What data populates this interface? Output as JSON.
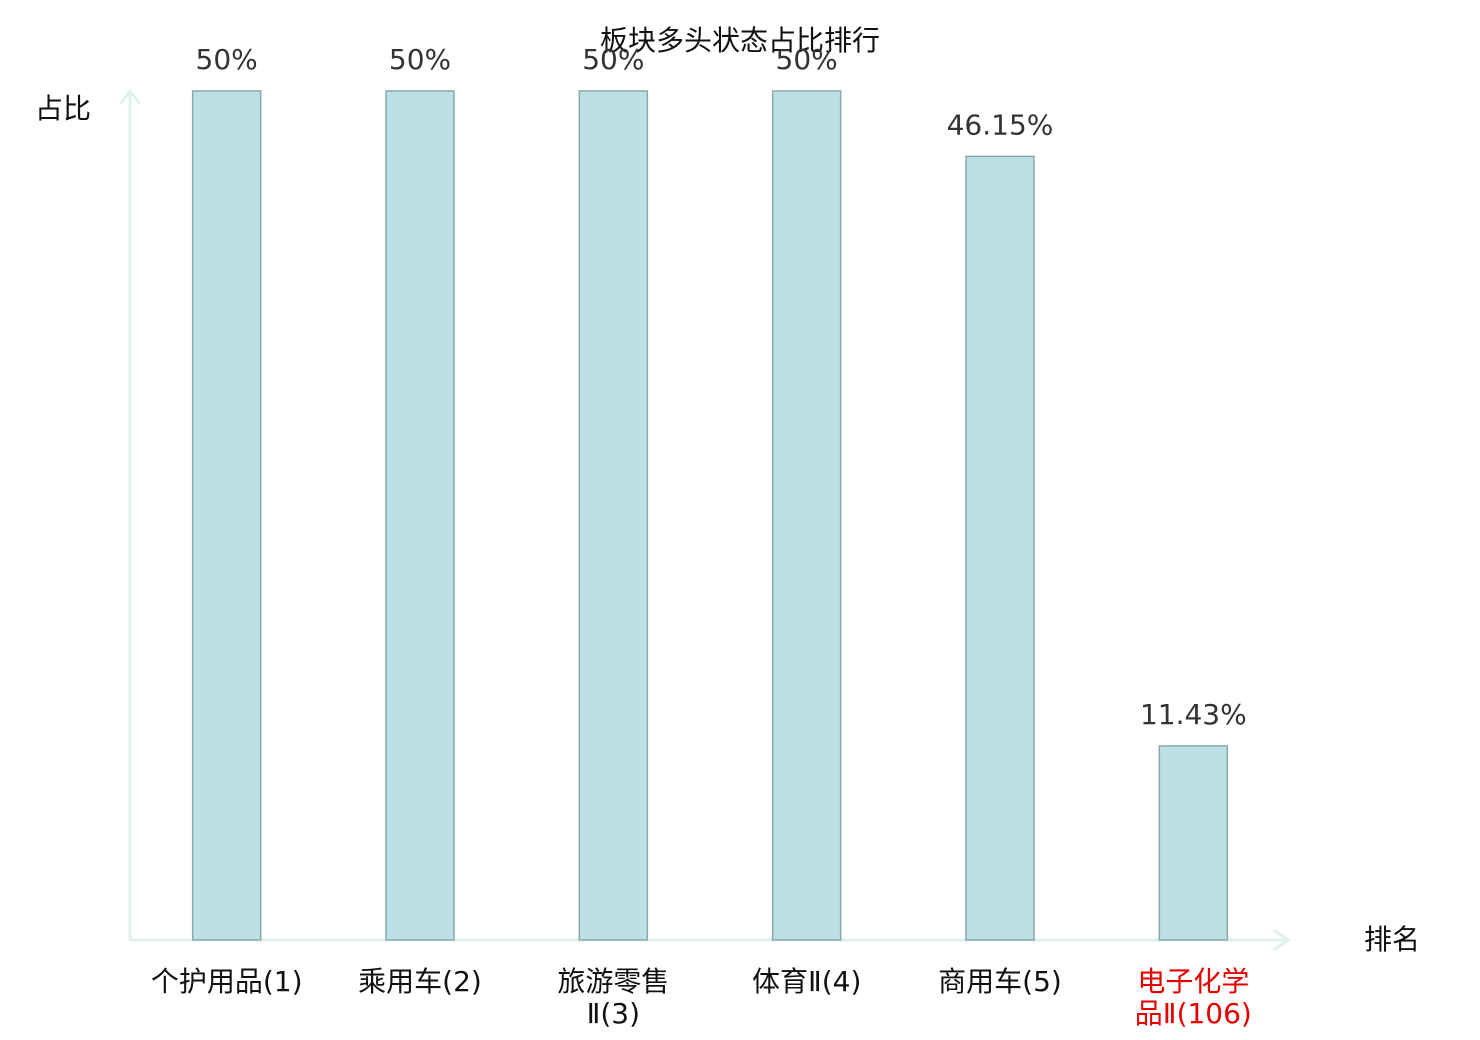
{
  "chart_data": {
    "type": "bar",
    "title": "板块多头状态占比排行",
    "y_label": "占比",
    "x_label": "排名",
    "categories": [
      "个护用品(1)",
      "乘用车(2)",
      "旅游零售Ⅱ(3)",
      "体育Ⅱ(4)",
      "商用车(5)",
      "电子化学品Ⅱ(106)"
    ],
    "values": [
      50,
      50,
      50,
      50,
      46.15,
      11.43
    ],
    "value_labels": [
      "50%",
      "50%",
      "50%",
      "50%",
      "46.15%",
      "11.43%"
    ],
    "color": "#bce0e3",
    "edge_color": "#8aa9ad",
    "category_colors": [
      "#111111",
      "#111111",
      "#111111",
      "#111111",
      "#111111",
      "#e60000"
    ],
    "ylim": [
      0,
      50
    ]
  }
}
